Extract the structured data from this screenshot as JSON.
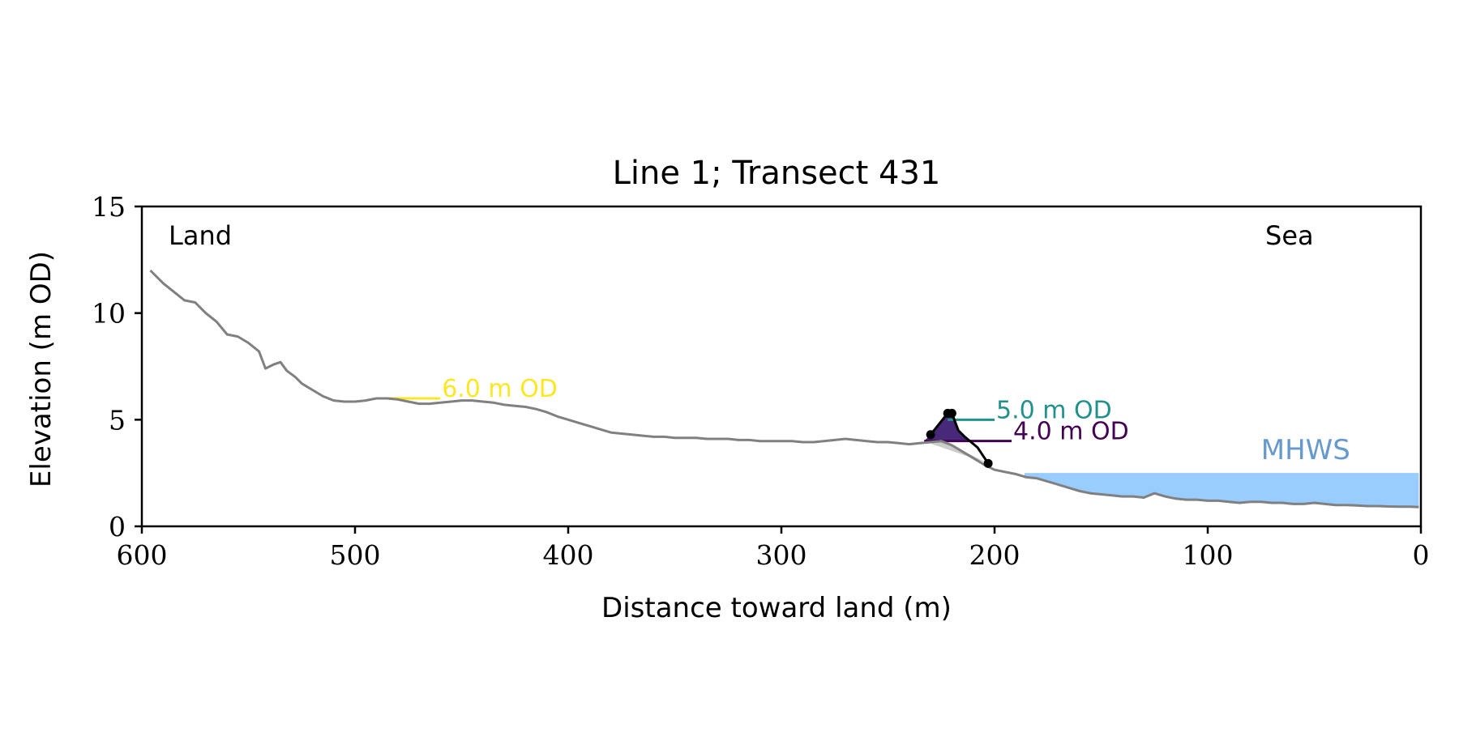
{
  "chart_data": {
    "type": "line",
    "title": "Line 1; Transect 431",
    "xlabel": "Distance toward land (m)",
    "ylabel": "Elevation (m OD)",
    "xlim": [
      600,
      0
    ],
    "ylim": [
      0,
      15
    ],
    "x_ticks": [
      600,
      500,
      400,
      300,
      200,
      100,
      0
    ],
    "y_ticks": [
      0,
      5,
      10,
      15
    ],
    "grid": false,
    "corner_labels": {
      "left": "Land",
      "right": "Sea"
    },
    "profile": {
      "color": "#808080",
      "x": [
        596,
        590,
        585,
        580,
        575,
        570,
        565,
        560,
        555,
        550,
        545,
        542,
        538,
        535,
        532,
        528,
        525,
        520,
        515,
        510,
        505,
        500,
        495,
        490,
        485,
        480,
        475,
        470,
        465,
        460,
        455,
        450,
        445,
        440,
        435,
        430,
        425,
        420,
        415,
        410,
        405,
        400,
        395,
        390,
        385,
        380,
        375,
        370,
        365,
        360,
        355,
        350,
        345,
        340,
        335,
        330,
        325,
        320,
        315,
        310,
        305,
        300,
        295,
        290,
        285,
        280,
        275,
        270,
        265,
        260,
        255,
        250,
        245,
        240,
        235,
        230,
        225,
        220,
        215,
        210,
        205,
        200,
        195,
        190,
        185,
        180,
        175,
        170,
        165,
        160,
        155,
        150,
        145,
        140,
        135,
        130,
        125,
        120,
        115,
        110,
        105,
        100,
        95,
        90,
        85,
        80,
        75,
        70,
        65,
        60,
        55,
        50,
        45,
        40,
        35,
        30,
        25,
        20,
        15,
        10,
        5,
        1
      ],
      "y": [
        12.0,
        11.4,
        11.0,
        10.6,
        10.5,
        10.0,
        9.6,
        9.0,
        8.9,
        8.6,
        8.2,
        7.4,
        7.6,
        7.7,
        7.3,
        7.0,
        6.7,
        6.4,
        6.1,
        5.9,
        5.85,
        5.85,
        5.9,
        6.0,
        6.0,
        5.95,
        5.85,
        5.75,
        5.75,
        5.8,
        5.85,
        5.9,
        5.9,
        5.85,
        5.8,
        5.7,
        5.65,
        5.6,
        5.5,
        5.35,
        5.15,
        5.0,
        4.85,
        4.7,
        4.55,
        4.4,
        4.35,
        4.3,
        4.25,
        4.2,
        4.2,
        4.15,
        4.15,
        4.15,
        4.1,
        4.1,
        4.1,
        4.05,
        4.05,
        4.0,
        4.0,
        4.0,
        4.0,
        3.95,
        3.95,
        4.0,
        4.05,
        4.1,
        4.05,
        4.0,
        3.95,
        3.95,
        3.9,
        3.85,
        3.9,
        3.95,
        4.0,
        3.8,
        3.5,
        3.2,
        2.9,
        2.65,
        2.55,
        2.45,
        2.3,
        2.25,
        2.1,
        1.95,
        1.8,
        1.65,
        1.55,
        1.5,
        1.45,
        1.4,
        1.4,
        1.35,
        1.55,
        1.4,
        1.3,
        1.25,
        1.25,
        1.2,
        1.2,
        1.15,
        1.1,
        1.15,
        1.15,
        1.1,
        1.1,
        1.05,
        1.05,
        1.1,
        1.05,
        1.0,
        1.0,
        0.98,
        0.95,
        0.95,
        0.93,
        0.92,
        0.92,
        0.9
      ]
    },
    "levels": [
      {
        "label": "6.0 m OD",
        "value": 6.0,
        "x_from": 490,
        "x_to": 460,
        "color": "#fde725"
      },
      {
        "label": "5.0 m OD",
        "value": 5.0,
        "x_from": 222,
        "x_to": 200,
        "color": "#21918c"
      },
      {
        "label": "4.0 m OD",
        "value": 4.0,
        "x_from": 233,
        "x_to": 192,
        "color": "#440154"
      }
    ],
    "dune": {
      "outline_color": "#000000",
      "fill_color": "#482878",
      "x": [
        230,
        222,
        220,
        217,
        214,
        208,
        203
      ],
      "y": [
        4.3,
        5.3,
        5.3,
        4.5,
        4.2,
        3.7,
        2.95
      ],
      "markers_x": [
        230,
        222,
        220,
        203
      ],
      "markers_y": [
        4.3,
        5.3,
        5.3,
        2.95
      ],
      "shadow_color": "#cccccc"
    },
    "mhws": {
      "label": "MHWS",
      "value": 2.5,
      "x_from": 186,
      "x_to": 1,
      "fill_color": "#99ccff",
      "label_color": "#6699cc"
    }
  }
}
